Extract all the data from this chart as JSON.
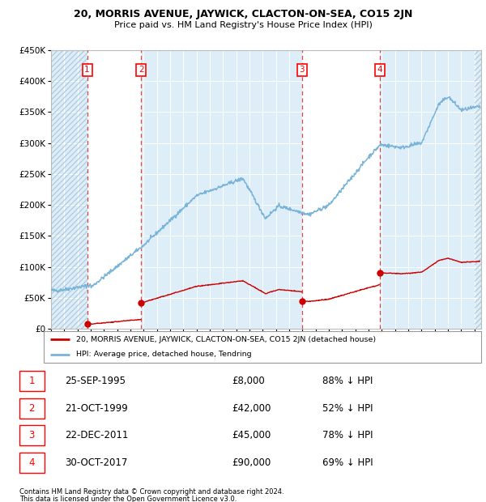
{
  "title": "20, MORRIS AVENUE, JAYWICK, CLACTON-ON-SEA, CO15 2JN",
  "subtitle": "Price paid vs. HM Land Registry's House Price Index (HPI)",
  "hpi_label": "HPI: Average price, detached house, Tendring",
  "property_label": "20, MORRIS AVENUE, JAYWICK, CLACTON-ON-SEA, CO15 2JN (detached house)",
  "footer1": "Contains HM Land Registry data © Crown copyright and database right 2024.",
  "footer2": "This data is licensed under the Open Government Licence v3.0.",
  "hpi_color": "#7ab4d8",
  "property_color": "#cc0000",
  "chart_bg": "#ddeef8",
  "band_white": "#eef5fb",
  "hatch_color": "#aac4d8",
  "ylim": [
    0,
    450000
  ],
  "yticks": [
    0,
    50000,
    100000,
    150000,
    200000,
    250000,
    300000,
    350000,
    400000,
    450000
  ],
  "ytick_labels": [
    "£0",
    "£50K",
    "£100K",
    "£150K",
    "£200K",
    "£250K",
    "£300K",
    "£350K",
    "£400K",
    "£450K"
  ],
  "transactions": [
    {
      "id": 1,
      "date": "25-SEP-1995",
      "year": 1995.73,
      "price": 8000,
      "pct": "88%",
      "dir": "↓"
    },
    {
      "id": 2,
      "date": "21-OCT-1999",
      "year": 1999.8,
      "price": 42000,
      "pct": "52%",
      "dir": "↓"
    },
    {
      "id": 3,
      "date": "22-DEC-2011",
      "year": 2011.97,
      "price": 45000,
      "pct": "78%",
      "dir": "↓"
    },
    {
      "id": 4,
      "date": "30-OCT-2017",
      "year": 2017.83,
      "price": 90000,
      "pct": "69%",
      "dir": "↓"
    }
  ],
  "xmin": 1993.0,
  "xmax": 2025.5
}
